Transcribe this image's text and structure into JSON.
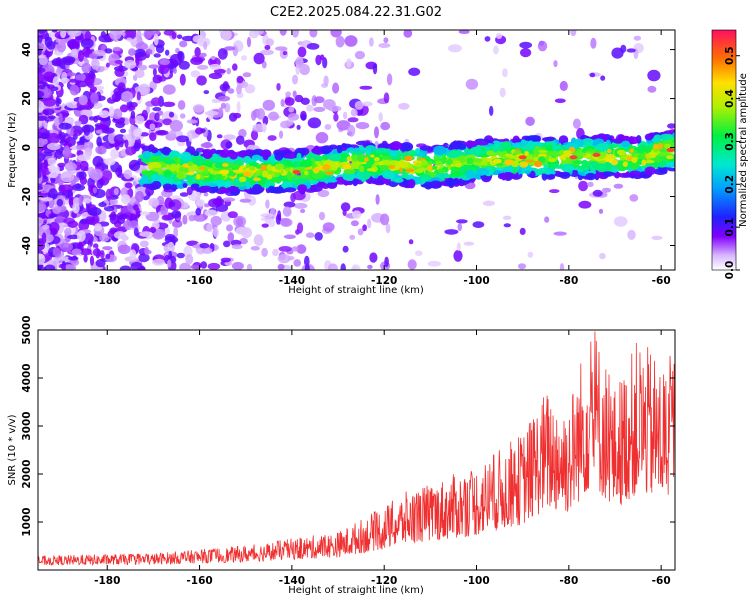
{
  "title": "C2E2.2025.084.22.31.G02",
  "chart_data": [
    {
      "type": "heatmap",
      "xlabel": "Height of straight line (km)",
      "ylabel": "Frequency (Hz)",
      "xlim": [
        -195,
        -57
      ],
      "ylim": [
        -50,
        48
      ],
      "xticks": [
        -180,
        -160,
        -140,
        -120,
        -100,
        -80,
        -60
      ],
      "yticks": [
        -40,
        -20,
        0,
        20,
        40
      ],
      "colorbar": {
        "label": "Normalized spectral amplitude",
        "range": [
          0,
          0.56
        ],
        "ticks": [
          0.0,
          0.1,
          0.2,
          0.3,
          0.4,
          0.5
        ]
      },
      "ridge": {
        "description": "Doppler ridge",
        "x": [
          -170,
          -155,
          -140,
          -125,
          -110,
          -95,
          -80,
          -65,
          -58
        ],
        "frequency": [
          -8,
          -10,
          -10,
          -6,
          -8,
          -4,
          -4,
          -4,
          -1
        ]
      }
    },
    {
      "type": "line",
      "xlabel": "Height of straight line (km)",
      "ylabel": "SNR (10 * v/v)",
      "xlim": [
        -195,
        -57
      ],
      "ylim": [
        0,
        5000
      ],
      "xticks": [
        -180,
        -160,
        -140,
        -120,
        -100,
        -80,
        -60
      ],
      "yticks": [
        1000,
        2000,
        3000,
        4000,
        5000
      ],
      "color": "#f03030",
      "envelope": {
        "x": [
          -195,
          -170,
          -150,
          -140,
          -130,
          -120,
          -115,
          -110,
          -100,
          -90,
          -85,
          -80,
          -75,
          -70,
          -65,
          -60,
          -57
        ],
        "snr": [
          280,
          330,
          480,
          620,
          750,
          1250,
          1550,
          1700,
          2050,
          2700,
          3550,
          3350,
          4950,
          3600,
          4550,
          4100,
          4300
        ]
      }
    }
  ]
}
